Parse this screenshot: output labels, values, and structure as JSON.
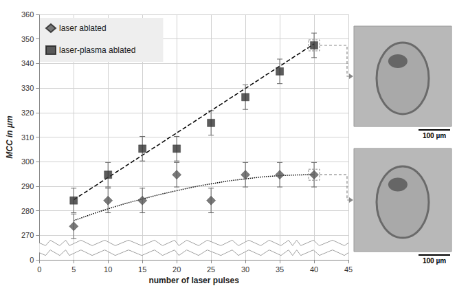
{
  "chart_data": {
    "type": "scatter",
    "xlabel": "number of laser pulses",
    "ylabel": "MCC in µm",
    "xlim": [
      0,
      45
    ],
    "xticks": [
      0,
      5,
      10,
      15,
      20,
      25,
      30,
      35,
      40,
      45
    ],
    "ylim": [
      0,
      360
    ],
    "yticks": [
      0,
      270,
      280,
      290,
      300,
      310,
      320,
      330,
      340,
      350,
      360
    ],
    "ybreak": [
      3,
      267
    ],
    "grid": true,
    "legend": "upper left",
    "x": [
      5,
      10,
      15,
      20,
      25,
      30,
      35,
      40
    ],
    "series": [
      {
        "name": "laser ablated",
        "color": "#595959",
        "marker": "diamond",
        "values": [
          273.7,
          284.2,
          284.2,
          294.7,
          284.2,
          294.7,
          294.7,
          294.7
        ],
        "errors": [
          5,
          5,
          5,
          5,
          5,
          5,
          5,
          5
        ],
        "line_style": "dotted",
        "trend_x": [
          5,
          10,
          15,
          20,
          25,
          30,
          35,
          40
        ],
        "trend_values": [
          276,
          280.8,
          284.8,
          288.2,
          291,
          293,
          294.3,
          294.7
        ]
      },
      {
        "name": "laser-plasma ablated",
        "color": "#333333",
        "marker": "square",
        "values": [
          284.2,
          294.7,
          305.3,
          305.3,
          315.8,
          326.3,
          336.8,
          347.4
        ],
        "errors": [
          5,
          5,
          5,
          5,
          5,
          5,
          5,
          5
        ],
        "line_style": "dashed",
        "trend_x": [
          5,
          40
        ],
        "trend_values": [
          284.5,
          348
        ]
      }
    ]
  },
  "images": [
    {
      "scale_bar": "100 µm"
    },
    {
      "scale_bar": "100 µm"
    }
  ]
}
